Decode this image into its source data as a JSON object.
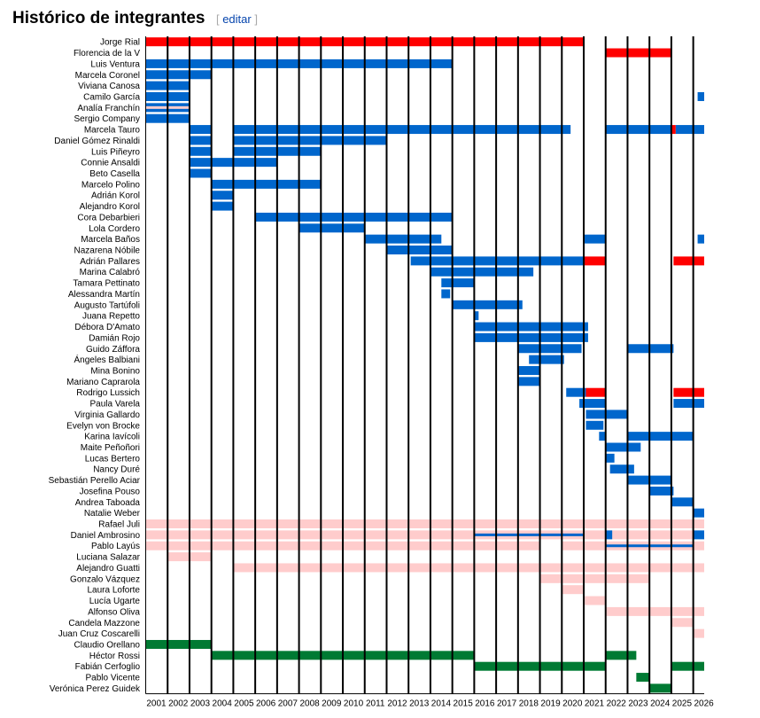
{
  "header": {
    "title": "Histórico de integrantes",
    "edit_open": "[",
    "edit_label": "editar",
    "edit_close": "]"
  },
  "colors": {
    "red": "#ff0000",
    "blue": "#0066cc",
    "pink": "#ffcccc",
    "green": "#007a33"
  },
  "chart_data": {
    "type": "bar",
    "orientation": "timeline",
    "xlim": [
      2001,
      2026.5
    ],
    "x_ticks": [
      "2001",
      "2002",
      "2003",
      "2004",
      "2005",
      "2006",
      "2007",
      "2008",
      "2009",
      "2010",
      "2011",
      "2012",
      "2013",
      "2014",
      "2015",
      "2016",
      "2017",
      "2018",
      "2019",
      "2020",
      "2021",
      "2022",
      "2023",
      "2024",
      "2025",
      "2026"
    ],
    "grid": true,
    "members": [
      {
        "name": "Jorge Rial",
        "bars": [
          {
            "s": 2001,
            "e": 2021,
            "c": "red"
          }
        ]
      },
      {
        "name": "Florencia de la V",
        "bars": [
          {
            "s": 2022,
            "e": 2025,
            "c": "red"
          }
        ]
      },
      {
        "name": "Luis Ventura",
        "bars": [
          {
            "s": 2001,
            "e": 2015,
            "c": "blue"
          }
        ]
      },
      {
        "name": "Marcela Coronel",
        "bars": [
          {
            "s": 2001,
            "e": 2004,
            "c": "blue"
          }
        ]
      },
      {
        "name": "Viviana Canosa",
        "bars": [
          {
            "s": 2001,
            "e": 2003,
            "c": "blue"
          }
        ]
      },
      {
        "name": "Camilo García",
        "bars": [
          {
            "s": 2001,
            "e": 2003,
            "c": "blue"
          },
          {
            "s": 2026.2,
            "e": 2026.5,
            "c": "blue"
          }
        ]
      },
      {
        "name": "Analía Franchín",
        "bars": [
          {
            "s": 2001,
            "e": 2003,
            "c": "blue"
          },
          {
            "s": 2001,
            "e": 2003,
            "c": "pink",
            "thin": true
          }
        ]
      },
      {
        "name": "Sergio Company",
        "bars": [
          {
            "s": 2001,
            "e": 2003,
            "c": "blue"
          }
        ]
      },
      {
        "name": "Marcela Tauro",
        "bars": [
          {
            "s": 2003,
            "e": 2004,
            "c": "blue"
          },
          {
            "s": 2005,
            "e": 2020.4,
            "c": "blue"
          },
          {
            "s": 2022,
            "e": 2025,
            "c": "blue"
          },
          {
            "s": 2025,
            "e": 2025.2,
            "c": "red"
          },
          {
            "s": 2025.2,
            "e": 2026.5,
            "c": "blue"
          }
        ]
      },
      {
        "name": "Daniel Gómez Rinaldi",
        "bars": [
          {
            "s": 2003,
            "e": 2004,
            "c": "blue"
          },
          {
            "s": 2005,
            "e": 2012,
            "c": "blue"
          }
        ]
      },
      {
        "name": "Luis Piñeyro",
        "bars": [
          {
            "s": 2003,
            "e": 2004,
            "c": "blue"
          },
          {
            "s": 2005,
            "e": 2009,
            "c": "blue"
          }
        ]
      },
      {
        "name": "Connie Ansaldi",
        "bars": [
          {
            "s": 2003,
            "e": 2007,
            "c": "blue"
          }
        ]
      },
      {
        "name": "Beto Casella",
        "bars": [
          {
            "s": 2003,
            "e": 2004,
            "c": "blue"
          }
        ]
      },
      {
        "name": "Marcelo Polino",
        "bars": [
          {
            "s": 2004,
            "e": 2009,
            "c": "blue"
          }
        ]
      },
      {
        "name": "Adrián Korol",
        "bars": [
          {
            "s": 2004,
            "e": 2005,
            "c": "blue"
          }
        ]
      },
      {
        "name": "Alejandro Korol",
        "bars": [
          {
            "s": 2004,
            "e": 2005,
            "c": "blue"
          }
        ]
      },
      {
        "name": "Cora Debarbieri",
        "bars": [
          {
            "s": 2006,
            "e": 2015,
            "c": "blue"
          }
        ]
      },
      {
        "name": "Lola Cordero",
        "bars": [
          {
            "s": 2008,
            "e": 2011,
            "c": "blue"
          }
        ]
      },
      {
        "name": "Marcela Baños",
        "bars": [
          {
            "s": 2011,
            "e": 2014.5,
            "c": "blue"
          },
          {
            "s": 2021,
            "e": 2022,
            "c": "blue"
          },
          {
            "s": 2026.2,
            "e": 2026.5,
            "c": "blue"
          }
        ]
      },
      {
        "name": "Nazarena Nóbile",
        "bars": [
          {
            "s": 2012,
            "e": 2015,
            "c": "blue"
          }
        ]
      },
      {
        "name": "Adrián Pallares",
        "bars": [
          {
            "s": 2013.1,
            "e": 2021,
            "c": "blue"
          },
          {
            "s": 2021,
            "e": 2022,
            "c": "red"
          },
          {
            "s": 2025.1,
            "e": 2026.5,
            "c": "red"
          }
        ]
      },
      {
        "name": "Marina Calabró",
        "bars": [
          {
            "s": 2014,
            "e": 2018.7,
            "c": "blue"
          }
        ]
      },
      {
        "name": "Tamara Pettinato",
        "bars": [
          {
            "s": 2014.5,
            "e": 2016,
            "c": "blue"
          }
        ]
      },
      {
        "name": "Alessandra Martín",
        "bars": [
          {
            "s": 2014.5,
            "e": 2014.9,
            "c": "blue"
          }
        ]
      },
      {
        "name": "Augusto Tartúfoli",
        "bars": [
          {
            "s": 2015,
            "e": 2018.2,
            "c": "blue"
          }
        ]
      },
      {
        "name": "Juana Repetto",
        "bars": [
          {
            "s": 2016,
            "e": 2016.2,
            "c": "blue"
          }
        ]
      },
      {
        "name": "Débora D'Amato",
        "bars": [
          {
            "s": 2016,
            "e": 2021.2,
            "c": "blue"
          }
        ]
      },
      {
        "name": "Damián Rojo",
        "bars": [
          {
            "s": 2016,
            "e": 2021.2,
            "c": "blue"
          }
        ]
      },
      {
        "name": "Guido Záffora",
        "bars": [
          {
            "s": 2018,
            "e": 2020.9,
            "c": "blue"
          },
          {
            "s": 2023,
            "e": 2025.1,
            "c": "blue"
          }
        ]
      },
      {
        "name": "Ángeles Balbiani",
        "bars": [
          {
            "s": 2018.5,
            "e": 2020.1,
            "c": "blue"
          }
        ]
      },
      {
        "name": "Mina Bonino",
        "bars": [
          {
            "s": 2018,
            "e": 2019,
            "c": "blue"
          }
        ]
      },
      {
        "name": "Mariano Caprarola",
        "bars": [
          {
            "s": 2018,
            "e": 2019,
            "c": "blue"
          }
        ]
      },
      {
        "name": "Rodrigo Lussich",
        "bars": [
          {
            "s": 2020.2,
            "e": 2021.1,
            "c": "blue"
          },
          {
            "s": 2021.1,
            "e": 2022,
            "c": "red"
          },
          {
            "s": 2025.1,
            "e": 2026.5,
            "c": "red"
          }
        ]
      },
      {
        "name": "Paula Varela",
        "bars": [
          {
            "s": 2020.8,
            "e": 2022,
            "c": "blue"
          },
          {
            "s": 2025.1,
            "e": 2026.5,
            "c": "blue"
          }
        ]
      },
      {
        "name": "Virginia Gallardo",
        "bars": [
          {
            "s": 2021.1,
            "e": 2023,
            "c": "blue"
          }
        ]
      },
      {
        "name": "Evelyn von Brocke",
        "bars": [
          {
            "s": 2021.1,
            "e": 2021.9,
            "c": "blue"
          }
        ]
      },
      {
        "name": "Karina Iavícoli",
        "bars": [
          {
            "s": 2021.7,
            "e": 2022,
            "c": "blue"
          },
          {
            "s": 2023,
            "e": 2026,
            "c": "blue"
          }
        ]
      },
      {
        "name": "Maite Peñoñori",
        "bars": [
          {
            "s": 2022,
            "e": 2023.6,
            "c": "blue"
          }
        ]
      },
      {
        "name": "Lucas Bertero",
        "bars": [
          {
            "s": 2022,
            "e": 2022.4,
            "c": "blue"
          }
        ]
      },
      {
        "name": "Nancy Duré",
        "bars": [
          {
            "s": 2022.2,
            "e": 2023.3,
            "c": "blue"
          }
        ]
      },
      {
        "name": "Sebastián Perello Aciar",
        "bars": [
          {
            "s": 2023,
            "e": 2025,
            "c": "blue"
          }
        ]
      },
      {
        "name": "Josefina Pouso",
        "bars": [
          {
            "s": 2024,
            "e": 2025.1,
            "c": "blue"
          }
        ]
      },
      {
        "name": "Andrea Taboada",
        "bars": [
          {
            "s": 2025,
            "e": 2026,
            "c": "blue"
          }
        ]
      },
      {
        "name": "Natalie Weber",
        "bars": [
          {
            "s": 2026,
            "e": 2026.5,
            "c": "blue"
          }
        ]
      },
      {
        "name": "Rafael Juli",
        "bars": [
          {
            "s": 2001,
            "e": 2026.5,
            "c": "pink"
          }
        ]
      },
      {
        "name": "Daniel Ambrosino",
        "bars": [
          {
            "s": 2001,
            "e": 2026,
            "c": "pink"
          },
          {
            "s": 2016,
            "e": 2021,
            "c": "blue",
            "thin": true
          },
          {
            "s": 2022,
            "e": 2022.3,
            "c": "blue"
          },
          {
            "s": 2026,
            "e": 2026.5,
            "c": "blue"
          }
        ]
      },
      {
        "name": "Pablo Layús",
        "bars": [
          {
            "s": 2001,
            "e": 2019,
            "c": "pink"
          },
          {
            "s": 2020,
            "e": 2026.5,
            "c": "pink"
          },
          {
            "s": 2022,
            "e": 2026,
            "c": "blue",
            "thin": true
          }
        ]
      },
      {
        "name": "Luciana Salazar",
        "bars": [
          {
            "s": 2002,
            "e": 2004,
            "c": "pink"
          }
        ]
      },
      {
        "name": "Alejandro Guatti",
        "bars": [
          {
            "s": 2005,
            "e": 2026.5,
            "c": "pink"
          }
        ]
      },
      {
        "name": "Gonzalo Vázquez",
        "bars": [
          {
            "s": 2019,
            "e": 2024,
            "c": "pink"
          }
        ]
      },
      {
        "name": "Laura Lofortе",
        "bars": [
          {
            "s": 2020,
            "e": 2021,
            "c": "pink"
          }
        ]
      },
      {
        "name": "Lucía Ugarte",
        "bars": [
          {
            "s": 2021,
            "e": 2022,
            "c": "pink"
          }
        ]
      },
      {
        "name": "Alfonso Oliva",
        "bars": [
          {
            "s": 2022,
            "e": 2026.5,
            "c": "pink"
          }
        ]
      },
      {
        "name": "Candela Mazzone",
        "bars": [
          {
            "s": 2025,
            "e": 2026,
            "c": "pink"
          }
        ]
      },
      {
        "name": "Juan Cruz Coscarelli",
        "bars": [
          {
            "s": 2026,
            "e": 2026.5,
            "c": "pink"
          }
        ]
      },
      {
        "name": "Claudio Orellano",
        "bars": [
          {
            "s": 2001,
            "e": 2004,
            "c": "green"
          }
        ]
      },
      {
        "name": "Héctor Rossi",
        "bars": [
          {
            "s": 2004,
            "e": 2016,
            "c": "green"
          },
          {
            "s": 2022,
            "e": 2023.4,
            "c": "green"
          }
        ]
      },
      {
        "name": "Fabián Cerfoglio",
        "bars": [
          {
            "s": 2016,
            "e": 2022,
            "c": "green"
          },
          {
            "s": 2025,
            "e": 2026.5,
            "c": "green"
          }
        ]
      },
      {
        "name": "Pablo Vicente",
        "bars": [
          {
            "s": 2023.4,
            "e": 2024,
            "c": "green"
          }
        ]
      },
      {
        "name": "Verónica Perez Guidek",
        "bars": [
          {
            "s": 2024,
            "e": 2025,
            "c": "green"
          }
        ]
      }
    ]
  }
}
